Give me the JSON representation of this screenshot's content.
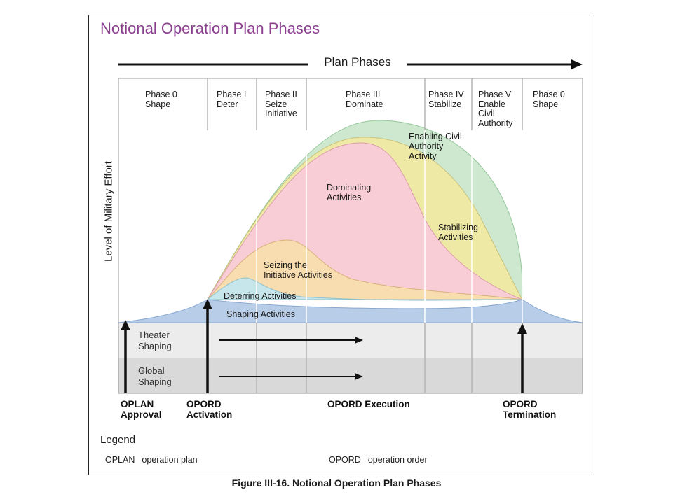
{
  "title": "Notional Operation Plan Phases",
  "plan_phases_label": "Plan Phases",
  "y_axis_label": "Level of Military Effort",
  "phases": [
    {
      "label": "Phase 0\nShape"
    },
    {
      "label": "Phase I\nDeter"
    },
    {
      "label": "Phase II\nSeize\nInitiative"
    },
    {
      "label": "Phase III\nDominate"
    },
    {
      "label": "Phase IV\nStabilize"
    },
    {
      "label": "Phase V\nEnable\nCivil\nAuthority"
    },
    {
      "label": "Phase 0\nShape"
    }
  ],
  "activities": {
    "enabling": "Enabling Civil\nAuthority\nActivity",
    "dominating": "Dominating\nActivities",
    "stabilizing": "Stabilizing\nActivities",
    "seizing": "Seizing the\nInitiative Activities",
    "deterring": "Deterring Activities",
    "shaping": "Shaping Activities"
  },
  "bands": {
    "theater": "Theater\nShaping",
    "global": "Global\nShaping"
  },
  "milestones": {
    "oplan_approval": "OPLAN\nApproval",
    "opord_activation": "OPORD\nActivation",
    "opord_execution": "OPORD Execution",
    "opord_termination": "OPORD\nTermination"
  },
  "legend": {
    "title": "Legend",
    "items": [
      {
        "abbr": "OPLAN",
        "meaning": "operation plan"
      },
      {
        "abbr": "OPORD",
        "meaning": "operation order"
      }
    ]
  },
  "caption": "Figure III-16.  Notional Operation Plan Phases",
  "colors": {
    "title": "#8b3f8f",
    "enabling": "#cde8cf",
    "stabilizing": "#efe9a6",
    "dominating": "#f8cdd6",
    "seizing": "#f8ddb0",
    "deterring": "#c6e6ec",
    "shaping": "#b8cde8",
    "theater_band": "#ececec",
    "global_band": "#d9d9d9"
  }
}
